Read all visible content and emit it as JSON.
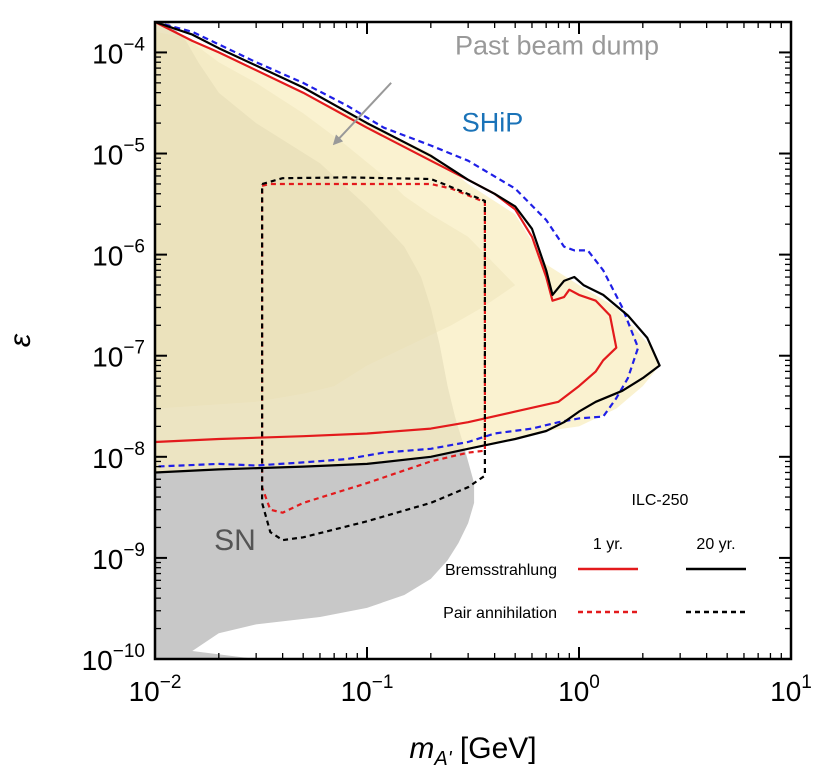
{
  "chart_data": {
    "type": "line",
    "xlabel_main": "m",
    "xlabel_sub": "A'",
    "xlabel_unit": "[GeV]",
    "ylabel": "ε",
    "x_scale": "log",
    "y_scale": "log",
    "xlim": [
      0.01,
      10
    ],
    "ylim": [
      1e-10,
      0.0002
    ],
    "x_ticks": [
      {
        "value": 0.01,
        "base": "10",
        "exp": "−2"
      },
      {
        "value": 0.1,
        "base": "10",
        "exp": "−1"
      },
      {
        "value": 1,
        "base": "10",
        "exp": "0"
      },
      {
        "value": 10,
        "base": "10",
        "exp": "1"
      }
    ],
    "y_ticks": [
      {
        "value": 1e-10,
        "base": "10",
        "exp": "−10"
      },
      {
        "value": 1e-09,
        "base": "10",
        "exp": "−9"
      },
      {
        "value": 1e-08,
        "base": "10",
        "exp": "−8"
      },
      {
        "value": 1e-07,
        "base": "10",
        "exp": "−7"
      },
      {
        "value": 1e-06,
        "base": "10",
        "exp": "−6"
      },
      {
        "value": 1e-05,
        "base": "10",
        "exp": "−5"
      },
      {
        "value": 0.0001,
        "base": "10",
        "exp": "−4"
      }
    ],
    "regions": [
      {
        "name": "SN",
        "label": "SN",
        "fill": "#c8c8c8",
        "label_at": [
          0.019,
          1.2e-09
        ],
        "label_color": "#555555",
        "points": [
          [
            0.01,
            0.0002
          ],
          [
            0.0115,
            0.0002
          ],
          [
            0.014,
            0.00013
          ],
          [
            0.016,
            8e-05
          ],
          [
            0.02,
            4e-05
          ],
          [
            0.03,
            2e-05
          ],
          [
            0.06,
            8e-06
          ],
          [
            0.1,
            3e-06
          ],
          [
            0.15,
            1.2e-06
          ],
          [
            0.18,
            6e-07
          ],
          [
            0.2,
            3e-07
          ],
          [
            0.22,
            1.3e-07
          ],
          [
            0.24,
            5e-08
          ],
          [
            0.26,
            2.5e-08
          ],
          [
            0.28,
            1.5e-08
          ],
          [
            0.3,
            9e-09
          ],
          [
            0.32,
            5.5e-09
          ],
          [
            0.32,
            3.5e-09
          ],
          [
            0.3,
            2.2e-09
          ],
          [
            0.27,
            1.4e-09
          ],
          [
            0.24,
            9.5e-10
          ],
          [
            0.2,
            6.2e-10
          ],
          [
            0.15,
            4.3e-10
          ],
          [
            0.1,
            3.2e-10
          ],
          [
            0.06,
            2.6e-10
          ],
          [
            0.03,
            2.2e-10
          ],
          [
            0.02,
            1.8e-10
          ],
          [
            0.015,
            1.2e-10
          ],
          [
            0.03,
            1e-10
          ],
          [
            0.01,
            1e-10
          ]
        ]
      },
      {
        "name": "Past beam dump",
        "label": "Past beam dump",
        "fill": "rgba(180,170,120,0.32)",
        "label_at": [
          0.26,
          9.5e-05
        ],
        "label_color": "#999999",
        "arrow_from": [
          0.13,
          5e-05
        ],
        "arrow_to": [
          0.07,
          1.25e-05
        ],
        "points": [
          [
            0.01,
            0.00016
          ],
          [
            0.014,
            0.00014
          ],
          [
            0.02,
            8e-05
          ],
          [
            0.03,
            5e-05
          ],
          [
            0.05,
            2.5e-05
          ],
          [
            0.08,
            1.2e-05
          ],
          [
            0.12,
            6e-06
          ],
          [
            0.15,
            3.8e-06
          ],
          [
            0.2,
            2.5e-06
          ],
          [
            0.3,
            1.5e-06
          ],
          [
            0.5,
            5e-07
          ],
          [
            0.35,
            3e-07
          ],
          [
            0.25,
            2e-07
          ],
          [
            0.15,
            1.2e-07
          ],
          [
            0.1,
            8e-08
          ],
          [
            0.07,
            5e-08
          ],
          [
            0.05,
            4.2e-08
          ],
          [
            0.03,
            3.5e-08
          ],
          [
            0.01,
            3e-08
          ]
        ]
      },
      {
        "name": "ILC-250 reach",
        "label": "",
        "fill": "rgba(248,238,192,0.75)",
        "points": [
          [
            0.01,
            0.0002
          ],
          [
            0.02,
            0.0001
          ],
          [
            0.05,
            4e-05
          ],
          [
            0.1,
            2e-05
          ],
          [
            0.2,
            1e-05
          ],
          [
            0.3,
            5e-06
          ],
          [
            0.5,
            2.5e-06
          ],
          [
            0.7,
            8e-07
          ],
          [
            1.0,
            5e-07
          ],
          [
            1.5,
            3e-07
          ],
          [
            2.2,
            1.2e-07
          ],
          [
            2.4,
            8e-08
          ],
          [
            2.0,
            5e-08
          ],
          [
            1.5,
            3e-08
          ],
          [
            1.0,
            2e-08
          ],
          [
            0.7,
            1.8e-08
          ],
          [
            0.5,
            1.5e-08
          ],
          [
            0.3,
            1.2e-08
          ],
          [
            0.2,
            1e-08
          ],
          [
            0.1,
            8.5e-09
          ],
          [
            0.05,
            8e-09
          ],
          [
            0.01,
            7e-09
          ]
        ]
      }
    ],
    "series": [
      {
        "name": "SHiP",
        "label": "SHiP",
        "color": "#1f1fe6",
        "dash": "6,4",
        "label_at": [
          0.28,
          1.65e-05
        ],
        "label_color": "#1a73b8",
        "points": [
          [
            0.01,
            0.0002
          ],
          [
            0.015,
            0.00016
          ],
          [
            0.02,
            0.00012
          ],
          [
            0.03,
            8e-05
          ],
          [
            0.05,
            5e-05
          ],
          [
            0.08,
            3e-05
          ],
          [
            0.12,
            1.8e-05
          ],
          [
            0.2,
            1.2e-05
          ],
          [
            0.3,
            8.5e-06
          ],
          [
            0.5,
            4.5e-06
          ],
          [
            0.7,
            2.2e-06
          ],
          [
            0.85,
            1.2e-06
          ],
          [
            0.95,
            1.1e-06
          ],
          [
            1.1,
            1.1e-06
          ],
          [
            1.3,
            7e-07
          ],
          [
            1.6,
            3e-07
          ],
          [
            1.9,
            1.2e-07
          ],
          [
            1.7,
            6e-08
          ],
          [
            1.5,
            3.8e-08
          ],
          [
            1.3,
            2.5e-08
          ],
          [
            1.0,
            2.4e-08
          ],
          [
            0.8,
            2.2e-08
          ],
          [
            0.6,
            1.9e-08
          ],
          [
            0.4,
            1.7e-08
          ],
          [
            0.3,
            1.4e-08
          ],
          [
            0.2,
            1.2e-08
          ],
          [
            0.12,
            1.1e-08
          ],
          [
            0.08,
            9.5e-09
          ],
          [
            0.05,
            8.8e-09
          ],
          [
            0.03,
            8.2e-09
          ],
          [
            0.02,
            8.5e-09
          ],
          [
            0.01,
            8e-09
          ]
        ]
      },
      {
        "name": "Bremsstrahlung 1 yr.",
        "label": "",
        "color": "#e31a1c",
        "dash": "",
        "points": [
          [
            0.01,
            0.0002
          ],
          [
            0.015,
            0.00013
          ],
          [
            0.02,
            0.0001
          ],
          [
            0.05,
            4e-05
          ],
          [
            0.1,
            1.8e-05
          ],
          [
            0.2,
            8.5e-06
          ],
          [
            0.3,
            5.5e-06
          ],
          [
            0.4,
            4e-06
          ],
          [
            0.5,
            2.8e-06
          ],
          [
            0.6,
            1.5e-06
          ],
          [
            0.7,
            6e-07
          ],
          [
            0.75,
            3.5e-07
          ],
          [
            0.85,
            3.8e-07
          ],
          [
            0.9,
            4.5e-07
          ],
          [
            1.0,
            4e-07
          ],
          [
            1.2,
            3.5e-07
          ],
          [
            1.4,
            2.5e-07
          ],
          [
            1.5,
            1.2e-07
          ],
          [
            1.3,
            9e-08
          ],
          [
            1.2,
            7e-08
          ],
          [
            1.0,
            5e-08
          ],
          [
            0.8,
            3.5e-08
          ],
          [
            0.5,
            2.8e-08
          ],
          [
            0.3,
            2.2e-08
          ],
          [
            0.2,
            1.9e-08
          ],
          [
            0.1,
            1.7e-08
          ],
          [
            0.05,
            1.6e-08
          ],
          [
            0.02,
            1.5e-08
          ],
          [
            0.01,
            1.4e-08
          ]
        ]
      },
      {
        "name": "Bremsstrahlung 20 yr.",
        "label": "",
        "color": "#000000",
        "dash": "",
        "points": [
          [
            0.01,
            0.0002
          ],
          [
            0.015,
            0.00015
          ],
          [
            0.02,
            0.00011
          ],
          [
            0.05,
            4.5e-05
          ],
          [
            0.1,
            2e-05
          ],
          [
            0.2,
            9.5e-06
          ],
          [
            0.3,
            5.5e-06
          ],
          [
            0.4,
            4e-06
          ],
          [
            0.5,
            3e-06
          ],
          [
            0.6,
            1.8e-06
          ],
          [
            0.7,
            7e-07
          ],
          [
            0.75,
            4e-07
          ],
          [
            0.85,
            5.5e-07
          ],
          [
            0.95,
            6e-07
          ],
          [
            1.05,
            5e-07
          ],
          [
            1.3,
            4e-07
          ],
          [
            1.7,
            2.5e-07
          ],
          [
            2.1,
            1.5e-07
          ],
          [
            2.4,
            8e-08
          ],
          [
            2.0,
            6e-08
          ],
          [
            1.6,
            4.5e-08
          ],
          [
            1.2,
            3.5e-08
          ],
          [
            1.0,
            2.8e-08
          ],
          [
            0.85,
            2.2e-08
          ],
          [
            0.7,
            1.8e-08
          ],
          [
            0.5,
            1.5e-08
          ],
          [
            0.3,
            1.2e-08
          ],
          [
            0.2,
            1e-08
          ],
          [
            0.1,
            8.5e-09
          ],
          [
            0.05,
            8e-09
          ],
          [
            0.02,
            7.5e-09
          ],
          [
            0.01,
            7e-09
          ]
        ]
      },
      {
        "name": "Pair annihilation 1 yr.",
        "label": "",
        "color": "#e31a1c",
        "dash": "5,4",
        "points": [
          [
            0.032,
            4.8e-06
          ],
          [
            0.035,
            5e-06
          ],
          [
            0.05,
            5e-06
          ],
          [
            0.1,
            5e-06
          ],
          [
            0.2,
            5e-06
          ],
          [
            0.25,
            4.5e-06
          ],
          [
            0.36,
            3.3e-06
          ],
          [
            0.36,
            1.15e-08
          ],
          [
            0.3,
            1.1e-08
          ],
          [
            0.2,
            9e-09
          ],
          [
            0.1,
            5.5e-09
          ],
          [
            0.05,
            3.5e-09
          ],
          [
            0.04,
            2.8e-09
          ],
          [
            0.035,
            3e-09
          ],
          [
            0.032,
            5e-09
          ],
          [
            0.032,
            4.8e-06
          ]
        ]
      },
      {
        "name": "Pair annihilation 20 yr.",
        "label": "",
        "color": "#000000",
        "dash": "5,4",
        "points": [
          [
            0.032,
            5e-06
          ],
          [
            0.04,
            5.7e-06
          ],
          [
            0.08,
            5.8e-06
          ],
          [
            0.2,
            5.6e-06
          ],
          [
            0.23,
            5e-06
          ],
          [
            0.36,
            3.4e-06
          ],
          [
            0.36,
            1e-08
          ],
          [
            0.36,
            6.5e-09
          ],
          [
            0.3,
            5e-09
          ],
          [
            0.2,
            3.5e-09
          ],
          [
            0.1,
            2.3e-09
          ],
          [
            0.05,
            1.6e-09
          ],
          [
            0.04,
            1.5e-09
          ],
          [
            0.035,
            1.8e-09
          ],
          [
            0.032,
            3.5e-09
          ],
          [
            0.032,
            5e-06
          ]
        ]
      }
    ],
    "legend": {
      "title": "ILC-250",
      "col_1yr": "1 yr.",
      "col_20yr": "20 yr.",
      "rows": [
        {
          "label": "Bremsstrahlung",
          "style_1yr": {
            "color": "#e31a1c",
            "dash": ""
          },
          "style_20yr": {
            "color": "#000000",
            "dash": ""
          }
        },
        {
          "label": "Pair annihilation",
          "style_1yr": {
            "color": "#e31a1c",
            "dash": "5,4"
          },
          "style_20yr": {
            "color": "#000000",
            "dash": "5,4"
          }
        }
      ]
    }
  }
}
